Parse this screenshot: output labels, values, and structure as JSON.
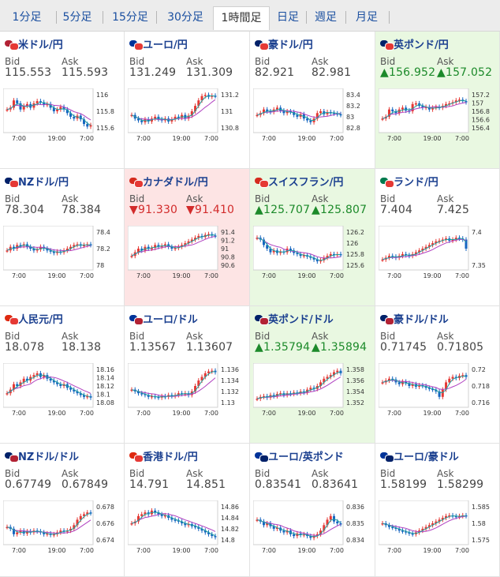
{
  "tabs": [
    {
      "label": "1分足",
      "active": false
    },
    {
      "label": "5分足",
      "active": false
    },
    {
      "label": "15分足",
      "active": false
    },
    {
      "label": "30分足",
      "active": false
    },
    {
      "label": "1時間足",
      "active": true
    },
    {
      "label": "日足",
      "active": false
    },
    {
      "label": "週足",
      "active": false
    },
    {
      "label": "月足",
      "active": false
    }
  ],
  "labels": {
    "bid": "Bid",
    "ask": "Ask"
  },
  "arrows": {
    "up": "▲",
    "down": "▼"
  },
  "colors": {
    "up": "#1c8a2a",
    "down": "#d22b2b",
    "candle_up": "#e53935",
    "candle_down": "#1565c0",
    "ma_fast": "#20a0a0",
    "ma_slow": "#b040c0"
  },
  "chart_x_ticks": [
    "7:00",
    "19:00",
    "7:00"
  ],
  "pairs": [
    {
      "name": "米ドル/円",
      "bid": "115.553",
      "ask": "115.593",
      "change": "",
      "flag1": "#b22234",
      "flag2": "#e53935",
      "yticks": [
        "116",
        "115.8",
        "115.6"
      ],
      "path": [
        0.55,
        0.6,
        0.8,
        0.72,
        0.55,
        0.65,
        0.7,
        0.6,
        0.72,
        0.78,
        0.75,
        0.68,
        0.7,
        0.6,
        0.5,
        0.55,
        0.62,
        0.55,
        0.45,
        0.35,
        0.3,
        0.38,
        0.28,
        0.15,
        0.08,
        0.12
      ]
    },
    {
      "name": "ユーロ/円",
      "bid": "131.249",
      "ask": "131.309",
      "change": "",
      "flag1": "#003399",
      "flag2": "#e53935",
      "yticks": [
        "131.2",
        "131",
        "130.8"
      ],
      "path": [
        0.4,
        0.3,
        0.25,
        0.2,
        0.28,
        0.22,
        0.3,
        0.35,
        0.28,
        0.25,
        0.3,
        0.22,
        0.28,
        0.35,
        0.32,
        0.4,
        0.3,
        0.38,
        0.5,
        0.65,
        0.8,
        0.92,
        0.95,
        0.9,
        0.93,
        0.92
      ]
    },
    {
      "name": "豪ドル/円",
      "bid": "82.921",
      "ask": "82.981",
      "change": "",
      "flag1": "#012169",
      "flag2": "#e53935",
      "yticks": [
        "83.4",
        "83.2",
        "83",
        "82.8"
      ],
      "path": [
        0.4,
        0.45,
        0.55,
        0.5,
        0.48,
        0.55,
        0.6,
        0.52,
        0.45,
        0.5,
        0.48,
        0.4,
        0.35,
        0.42,
        0.3,
        0.25,
        0.2,
        0.3,
        0.45,
        0.5,
        0.42,
        0.48,
        0.46,
        0.44,
        0.42,
        0.4
      ]
    },
    {
      "name": "英ポンド/円",
      "bid": "156.952",
      "ask": "157.052",
      "change": "up",
      "flag1": "#012169",
      "flag2": "#e53935",
      "yticks": [
        "157.2",
        "157",
        "156.8",
        "156.6",
        "156.4"
      ],
      "path": [
        0.3,
        0.35,
        0.55,
        0.5,
        0.45,
        0.55,
        0.6,
        0.52,
        0.5,
        0.7,
        0.72,
        0.65,
        0.6,
        0.62,
        0.55,
        0.6,
        0.62,
        0.6,
        0.65,
        0.7,
        0.72,
        0.75,
        0.8,
        0.82,
        0.78,
        0.75
      ]
    },
    {
      "name": "NZドル/円",
      "bid": "78.304",
      "ask": "78.384",
      "change": "",
      "flag1": "#012169",
      "flag2": "#e53935",
      "yticks": [
        "78.4",
        "78.2",
        "78"
      ],
      "path": [
        0.45,
        0.55,
        0.5,
        0.6,
        0.58,
        0.62,
        0.55,
        0.5,
        0.45,
        0.48,
        0.55,
        0.5,
        0.45,
        0.42,
        0.38,
        0.42,
        0.4,
        0.45,
        0.5,
        0.55,
        0.6,
        0.62,
        0.58,
        0.6,
        0.62,
        0.6
      ]
    },
    {
      "name": "カナダドル/円",
      "bid": "91.330",
      "ask": "91.410",
      "change": "down",
      "flag1": "#d52b1e",
      "flag2": "#e53935",
      "yticks": [
        "91.4",
        "91.2",
        "91",
        "90.8",
        "90.6"
      ],
      "path": [
        0.3,
        0.4,
        0.5,
        0.45,
        0.55,
        0.5,
        0.52,
        0.6,
        0.55,
        0.58,
        0.62,
        0.55,
        0.5,
        0.52,
        0.55,
        0.6,
        0.65,
        0.7,
        0.75,
        0.8,
        0.85,
        0.82,
        0.88,
        0.9,
        0.86,
        0.85
      ]
    },
    {
      "name": "スイスフラン/円",
      "bid": "125.707",
      "ask": "125.807",
      "change": "up",
      "flag1": "#d52b1e",
      "flag2": "#e53935",
      "yticks": [
        "126.2",
        "126",
        "125.8",
        "125.6"
      ],
      "path": [
        0.8,
        0.75,
        0.6,
        0.5,
        0.4,
        0.45,
        0.38,
        0.42,
        0.4,
        0.5,
        0.45,
        0.38,
        0.35,
        0.3,
        0.32,
        0.28,
        0.25,
        0.2,
        0.15,
        0.18,
        0.25,
        0.3,
        0.35,
        0.32,
        0.35,
        0.33
      ]
    },
    {
      "name": "ランド/円",
      "bid": "7.404",
      "ask": "7.425",
      "change": "",
      "flag1": "#007a4d",
      "flag2": "#e53935",
      "yticks": [
        "7.4",
        "7.35"
      ],
      "path": [
        0.2,
        0.25,
        0.3,
        0.28,
        0.25,
        0.3,
        0.35,
        0.32,
        0.3,
        0.35,
        0.4,
        0.45,
        0.5,
        0.55,
        0.6,
        0.65,
        0.7,
        0.72,
        0.75,
        0.78,
        0.72,
        0.75,
        0.8,
        0.78,
        0.75,
        0.5
      ]
    },
    {
      "name": "人民元/円",
      "bid": "18.078",
      "ask": "18.138",
      "change": "",
      "flag1": "#de2910",
      "flag2": "#e53935",
      "yticks": [
        "18.16",
        "18.14",
        "18.12",
        "18.1",
        "18.08"
      ],
      "path": [
        0.3,
        0.4,
        0.55,
        0.5,
        0.6,
        0.7,
        0.65,
        0.75,
        0.8,
        0.85,
        0.75,
        0.8,
        0.7,
        0.65,
        0.6,
        0.55,
        0.5,
        0.55,
        0.45,
        0.4,
        0.35,
        0.3,
        0.25,
        0.2,
        0.22,
        0.18
      ]
    },
    {
      "name": "ユーロ/ドル",
      "bid": "1.13567",
      "ask": "1.13607",
      "change": "",
      "flag1": "#003399",
      "flag2": "#b22234",
      "yticks": [
        "1.136",
        "1.134",
        "1.132",
        "1.13"
      ],
      "path": [
        0.4,
        0.35,
        0.3,
        0.28,
        0.25,
        0.2,
        0.22,
        0.2,
        0.18,
        0.22,
        0.2,
        0.25,
        0.22,
        0.25,
        0.3,
        0.28,
        0.3,
        0.25,
        0.35,
        0.5,
        0.65,
        0.75,
        0.85,
        0.9,
        0.92,
        0.88
      ]
    },
    {
      "name": "英ポンド/ドル",
      "bid": "1.35794",
      "ask": "1.35894",
      "change": "up",
      "flag1": "#012169",
      "flag2": "#b22234",
      "yticks": [
        "1.358",
        "1.356",
        "1.354",
        "1.352"
      ],
      "path": [
        0.15,
        0.2,
        0.22,
        0.18,
        0.25,
        0.22,
        0.28,
        0.3,
        0.25,
        0.3,
        0.28,
        0.32,
        0.3,
        0.35,
        0.32,
        0.4,
        0.45,
        0.42,
        0.5,
        0.6,
        0.7,
        0.75,
        0.8,
        0.88,
        0.92,
        0.85
      ]
    },
    {
      "name": "豪ドル/ドル",
      "bid": "0.71745",
      "ask": "0.71805",
      "change": "",
      "flag1": "#012169",
      "flag2": "#b22234",
      "yticks": [
        "0.72",
        "0.718",
        "0.716"
      ],
      "path": [
        0.6,
        0.65,
        0.7,
        0.68,
        0.6,
        0.55,
        0.62,
        0.58,
        0.5,
        0.55,
        0.48,
        0.52,
        0.5,
        0.45,
        0.42,
        0.4,
        0.35,
        0.2,
        0.4,
        0.6,
        0.7,
        0.75,
        0.72,
        0.78,
        0.8,
        0.75
      ]
    },
    {
      "name": "NZドル/ドル",
      "bid": "0.67749",
      "ask": "0.67849",
      "change": "",
      "flag1": "#012169",
      "flag2": "#b22234",
      "yticks": [
        "0.678",
        "0.676",
        "0.674"
      ],
      "path": [
        0.4,
        0.35,
        0.2,
        0.25,
        0.3,
        0.22,
        0.28,
        0.25,
        0.3,
        0.28,
        0.25,
        0.2,
        0.22,
        0.18,
        0.2,
        0.25,
        0.3,
        0.28,
        0.3,
        0.35,
        0.45,
        0.6,
        0.7,
        0.75,
        0.8,
        0.78
      ]
    },
    {
      "name": "香港ドル/円",
      "bid": "14.791",
      "ask": "14.851",
      "change": "",
      "flag1": "#de2910",
      "flag2": "#e53935",
      "yticks": [
        "14.86",
        "14.84",
        "14.82",
        "14.8"
      ],
      "path": [
        0.5,
        0.55,
        0.7,
        0.75,
        0.8,
        0.75,
        0.85,
        0.8,
        0.75,
        0.7,
        0.72,
        0.65,
        0.6,
        0.58,
        0.55,
        0.5,
        0.45,
        0.48,
        0.42,
        0.4,
        0.35,
        0.3,
        0.25,
        0.2,
        0.15,
        0.12
      ]
    },
    {
      "name": "ユーロ/英ポンド",
      "bid": "0.83541",
      "ask": "0.83641",
      "change": "",
      "flag1": "#003399",
      "flag2": "#012169",
      "yticks": [
        "0.836",
        "0.835",
        "0.834"
      ],
      "path": [
        0.6,
        0.55,
        0.45,
        0.5,
        0.42,
        0.35,
        0.38,
        0.3,
        0.25,
        0.3,
        0.2,
        0.15,
        0.22,
        0.18,
        0.2,
        0.15,
        0.1,
        0.15,
        0.2,
        0.3,
        0.45,
        0.6,
        0.7,
        0.55,
        0.5,
        0.48
      ]
    },
    {
      "name": "ユーロ/豪ドル",
      "bid": "1.58199",
      "ask": "1.58299",
      "change": "",
      "flag1": "#003399",
      "flag2": "#012169",
      "yticks": [
        "1.585",
        "1.58",
        "1.575"
      ],
      "path": [
        0.5,
        0.45,
        0.4,
        0.38,
        0.35,
        0.3,
        0.28,
        0.25,
        0.22,
        0.2,
        0.25,
        0.3,
        0.35,
        0.4,
        0.45,
        0.5,
        0.55,
        0.6,
        0.65,
        0.7,
        0.72,
        0.7,
        0.68,
        0.7,
        0.72,
        0.7
      ]
    }
  ]
}
